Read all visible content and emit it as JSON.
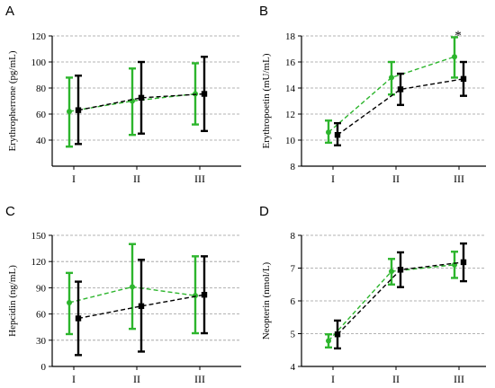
{
  "colors": {
    "series_green": "#2db52d",
    "series_black": "#000000",
    "grid": "#9a9a9a"
  },
  "chart_data": [
    {
      "type": "line",
      "panel": "A",
      "ylabel": "Erythropherrone (pg/mL)",
      "categories": [
        "I",
        "II",
        "III"
      ],
      "ylim": [
        20,
        120
      ],
      "yticks": [
        "40",
        "60",
        "80",
        "100",
        "120"
      ],
      "grid": true,
      "annotations": [],
      "series": [
        {
          "color": "#2db52d",
          "marker": "circle",
          "values": [
            62,
            70,
            75.5
          ],
          "err_low": [
            35,
            44,
            52
          ],
          "err_high": [
            88,
            95,
            99
          ]
        },
        {
          "color": "#000000",
          "marker": "square",
          "values": [
            63,
            72.5,
            75.5
          ],
          "err_low": [
            37,
            45,
            47
          ],
          "err_high": [
            89.5,
            100,
            104
          ]
        }
      ]
    },
    {
      "type": "line",
      "panel": "B",
      "ylabel": "Erythropoetin (mU/mL)",
      "categories": [
        "I",
        "II",
        "III"
      ],
      "ylim": [
        8,
        18
      ],
      "yticks": [
        "8",
        "10",
        "12",
        "14",
        "16",
        "18"
      ],
      "grid": true,
      "annotations": [
        {
          "text": "*",
          "category": 2,
          "value": 18.0
        }
      ],
      "series": [
        {
          "color": "#2db52d",
          "marker": "circle",
          "values": [
            10.6,
            14.8,
            16.4
          ],
          "err_low": [
            9.8,
            13.5,
            14.8
          ],
          "err_high": [
            11.5,
            16.0,
            17.9
          ]
        },
        {
          "color": "#000000",
          "marker": "square",
          "values": [
            10.4,
            13.9,
            14.7
          ],
          "err_low": [
            9.6,
            12.7,
            13.4
          ],
          "err_high": [
            11.3,
            15.1,
            16.0
          ]
        }
      ]
    },
    {
      "type": "line",
      "panel": "C",
      "ylabel": "Hepcidin (ng/mL)",
      "categories": [
        "I",
        "II",
        "III"
      ],
      "ylim": [
        0,
        150
      ],
      "yticks": [
        "0",
        "30",
        "60",
        "90",
        "120",
        "150"
      ],
      "grid": true,
      "annotations": [],
      "series": [
        {
          "color": "#2db52d",
          "marker": "circle",
          "values": [
            73,
            91,
            81
          ],
          "err_low": [
            37,
            43,
            38
          ],
          "err_high": [
            107,
            140,
            126
          ]
        },
        {
          "color": "#000000",
          "marker": "square",
          "values": [
            55,
            69,
            82
          ],
          "err_low": [
            13,
            17,
            38
          ],
          "err_high": [
            97,
            122,
            126
          ]
        }
      ]
    },
    {
      "type": "line",
      "panel": "D",
      "ylabel": "Neopterin (nmol/L)",
      "categories": [
        "I",
        "II",
        "III"
      ],
      "ylim": [
        4,
        8
      ],
      "yticks": [
        "4",
        "5",
        "6",
        "7",
        "8"
      ],
      "grid": true,
      "annotations": [],
      "series": [
        {
          "color": "#2db52d",
          "marker": "circle",
          "values": [
            4.78,
            6.9,
            7.1
          ],
          "err_low": [
            4.58,
            6.5,
            6.7
          ],
          "err_high": [
            4.98,
            7.28,
            7.5
          ]
        },
        {
          "color": "#000000",
          "marker": "square",
          "values": [
            4.98,
            6.95,
            7.18
          ],
          "err_low": [
            4.55,
            6.42,
            6.6
          ],
          "err_high": [
            5.4,
            7.48,
            7.75
          ]
        }
      ]
    }
  ]
}
